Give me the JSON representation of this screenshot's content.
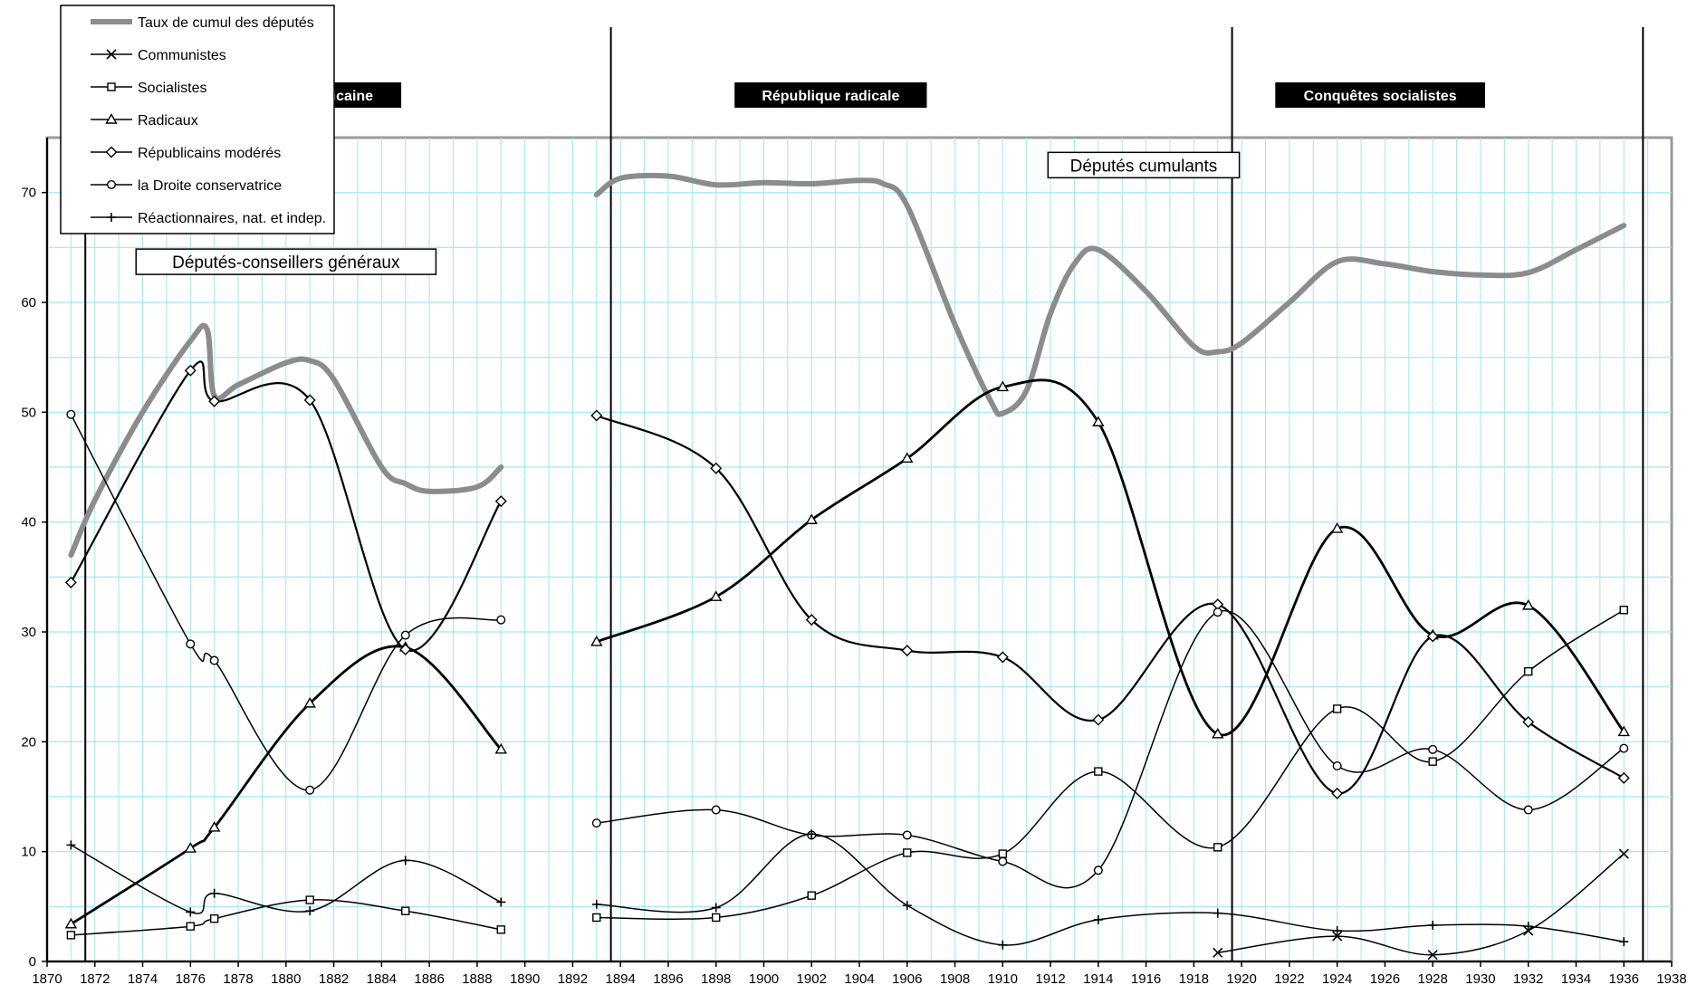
{
  "chart_data": {
    "type": "line",
    "title": "",
    "xlabel": "",
    "ylabel": "",
    "xlim": [
      1870,
      1938
    ],
    "ylim": [
      0,
      75
    ],
    "x_ticks": [
      1870,
      1872,
      1874,
      1876,
      1878,
      1880,
      1882,
      1884,
      1886,
      1888,
      1890,
      1892,
      1894,
      1896,
      1898,
      1900,
      1902,
      1904,
      1906,
      1908,
      1910,
      1912,
      1914,
      1916,
      1918,
      1920,
      1922,
      1924,
      1926,
      1928,
      1930,
      1932,
      1934,
      1936,
      1938
    ],
    "y_ticks": [
      0,
      10,
      20,
      30,
      40,
      50,
      60,
      70
    ],
    "grid": true,
    "legend_position": "top-left",
    "eras": [
      {
        "label": "Assise républicaine",
        "center": 1880.8
      },
      {
        "label": "République radicale",
        "center": 1902.8
      },
      {
        "label": "Conquêtes socialistes",
        "center": 1925.8
      }
    ],
    "era_dividers": [
      1871.6,
      1893.6,
      1919.6,
      1936.8
    ],
    "annotations": [
      {
        "text": "Députés-conseillers généraux",
        "x": 1880.0,
        "y": 63.7
      },
      {
        "text": "Députés cumulants",
        "x": 1915.9,
        "y": 72.5
      }
    ],
    "series": [
      {
        "name": "Taux de cumul des députés",
        "style": "total",
        "segments": [
          [
            [
              1871,
              37
            ],
            [
              1872,
              42
            ],
            [
              1874,
              50
            ],
            [
              1876,
              56.5
            ],
            [
              1876.7,
              57.5
            ],
            [
              1877,
              51.5
            ],
            [
              1878,
              52.5
            ],
            [
              1880,
              54.5
            ],
            [
              1881,
              54.7
            ],
            [
              1882,
              53
            ],
            [
              1884,
              45
            ],
            [
              1885,
              43.5
            ],
            [
              1886,
              42.8
            ],
            [
              1888,
              43.2
            ],
            [
              1889,
              45
            ]
          ],
          [
            [
              1893,
              69.8
            ],
            [
              1894,
              71.3
            ],
            [
              1896,
              71.5
            ],
            [
              1898,
              70.7
            ],
            [
              1900,
              70.9
            ],
            [
              1902,
              70.8
            ],
            [
              1904,
              71.1
            ],
            [
              1905,
              70.8
            ],
            [
              1906,
              68.8
            ],
            [
              1908,
              58
            ],
            [
              1909.5,
              51
            ],
            [
              1910,
              49.9
            ],
            [
              1911,
              52
            ],
            [
              1912,
              59
            ],
            [
              1913,
              63.5
            ],
            [
              1914,
              64.8
            ],
            [
              1916,
              61
            ],
            [
              1918,
              56
            ],
            [
              1919,
              55.5
            ],
            [
              1920,
              56.3
            ],
            [
              1922,
              60
            ],
            [
              1924,
              63.7
            ],
            [
              1926,
              63.5
            ],
            [
              1928,
              62.8
            ],
            [
              1930,
              62.5
            ],
            [
              1932,
              62.7
            ],
            [
              1934,
              64.8
            ],
            [
              1936,
              67
            ]
          ]
        ]
      },
      {
        "name": "Communistes",
        "marker": "x",
        "segments": [
          [
            [
              1919,
              0.8
            ],
            [
              1924,
              2.3
            ],
            [
              1928,
              0.6
            ],
            [
              1932,
              2.8
            ],
            [
              1936,
              9.8
            ]
          ]
        ]
      },
      {
        "name": "Socialistes",
        "marker": "square",
        "segments": [
          [
            [
              1871,
              2.4
            ],
            [
              1876,
              3.2
            ],
            [
              1877,
              3.9
            ],
            [
              1881,
              5.6
            ],
            [
              1885,
              4.6
            ],
            [
              1889,
              2.9
            ]
          ],
          [
            [
              1893,
              4
            ],
            [
              1898,
              4
            ],
            [
              1902,
              6
            ],
            [
              1906,
              9.9
            ],
            [
              1910,
              9.8
            ],
            [
              1914,
              17.3
            ],
            [
              1919,
              10.4
            ],
            [
              1924,
              23
            ],
            [
              1928,
              18.2
            ],
            [
              1932,
              26.4
            ],
            [
              1936,
              32
            ]
          ]
        ]
      },
      {
        "name": "Radicaux",
        "marker": "triangle",
        "segments": [
          [
            [
              1871,
              3.4
            ],
            [
              1876,
              10.3
            ],
            [
              1877,
              12.2
            ],
            [
              1881,
              23.5
            ],
            [
              1885,
              28.6
            ],
            [
              1889,
              19.3
            ]
          ],
          [
            [
              1893,
              29.1
            ],
            [
              1898,
              33.2
            ],
            [
              1902,
              40.2
            ],
            [
              1906,
              45.8
            ],
            [
              1910,
              52.3
            ],
            [
              1914,
              49.1
            ],
            [
              1919,
              20.7
            ],
            [
              1924,
              39.4
            ],
            [
              1928,
              29.7
            ],
            [
              1932,
              32.4
            ],
            [
              1936,
              20.9
            ]
          ]
        ]
      },
      {
        "name": "Républicains modérés",
        "marker": "diamond",
        "segments": [
          [
            [
              1871,
              34.5
            ],
            [
              1876,
              53.8
            ],
            [
              1877,
              51
            ],
            [
              1881,
              51.1
            ],
            [
              1885,
              28.4
            ],
            [
              1889,
              41.9
            ]
          ],
          [
            [
              1893,
              49.7
            ],
            [
              1898,
              44.9
            ],
            [
              1902,
              31.1
            ],
            [
              1906,
              28.3
            ],
            [
              1910,
              27.7
            ],
            [
              1914,
              22
            ],
            [
              1919,
              32.5
            ],
            [
              1924,
              15.3
            ],
            [
              1928,
              29.6
            ],
            [
              1932,
              21.8
            ],
            [
              1936,
              16.7
            ]
          ]
        ]
      },
      {
        "name": "la Droite conservatrice",
        "marker": "circle",
        "segments": [
          [
            [
              1871,
              49.8
            ],
            [
              1876,
              28.9
            ],
            [
              1877,
              27.4
            ],
            [
              1881,
              15.6
            ],
            [
              1885,
              29.7
            ],
            [
              1889,
              31.1
            ]
          ],
          [
            [
              1893,
              12.6
            ],
            [
              1898,
              13.8
            ],
            [
              1902,
              11.5
            ],
            [
              1906,
              11.5
            ],
            [
              1910,
              9.1
            ],
            [
              1914,
              8.3
            ],
            [
              1919,
              31.8
            ],
            [
              1924,
              17.8
            ],
            [
              1928,
              19.3
            ],
            [
              1932,
              13.8
            ],
            [
              1936,
              19.4
            ]
          ]
        ]
      },
      {
        "name": "Réactionnaires, nat. et indep.",
        "marker": "plus",
        "segments": [
          [
            [
              1871,
              10.6
            ],
            [
              1876,
              4.5
            ],
            [
              1877,
              6.2
            ],
            [
              1881,
              4.6
            ],
            [
              1885,
              9.2
            ],
            [
              1889,
              5.4
            ]
          ],
          [
            [
              1893,
              5.2
            ],
            [
              1898,
              4.9
            ],
            [
              1902,
              11.6
            ],
            [
              1906,
              5.1
            ],
            [
              1910,
              1.5
            ],
            [
              1914,
              3.8
            ],
            [
              1919,
              4.4
            ],
            [
              1924,
              2.8
            ],
            [
              1928,
              3.3
            ],
            [
              1932,
              3.2
            ],
            [
              1936,
              1.8
            ]
          ]
        ]
      }
    ]
  }
}
